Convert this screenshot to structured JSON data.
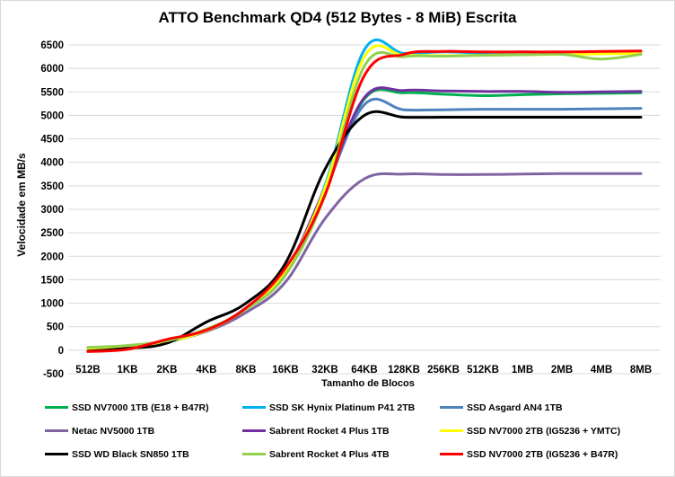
{
  "chart_data": {
    "type": "line",
    "title": "ATTO Benchmark QD4 (512 Bytes - 8 MiB) Escrita",
    "xlabel": "Tamanho de Blocos",
    "ylabel": "Velocidade em MB/s",
    "ylim": [
      -500,
      6500
    ],
    "yticks": [
      -500,
      0,
      500,
      1000,
      1500,
      2000,
      2500,
      3000,
      3500,
      4000,
      4500,
      5000,
      5500,
      6000,
      6500
    ],
    "ytick_labels": [
      "-500",
      "0",
      "500",
      "1000",
      "1500",
      "2000",
      "2500",
      "3000",
      "3500",
      "4000",
      "4500",
      "5000",
      "5500",
      "6000",
      "6500"
    ],
    "grid": true,
    "legend_position": "bottom",
    "categories": [
      "512B",
      "1KB",
      "2KB",
      "4KB",
      "8KB",
      "16KB",
      "32KB",
      "64KB",
      "128KB",
      "256KB",
      "512KB",
      "1MB",
      "2MB",
      "4MB",
      "8MB"
    ],
    "series": [
      {
        "name": "SSD NV7000 1TB (E18 + B47R)",
        "color": "#00b050",
        "values": [
          50,
          80,
          180,
          420,
          880,
          1650,
          3400,
          5350,
          5480,
          5450,
          5420,
          5440,
          5460,
          5470,
          5480
        ]
      },
      {
        "name": "SSD SK Hynix Platinum P41 2TB",
        "color": "#00b0f0",
        "values": [
          30,
          60,
          170,
          430,
          900,
          1700,
          3500,
          6400,
          6320,
          6350,
          6330,
          6350,
          6340,
          6350,
          6360
        ]
      },
      {
        "name": "SSD Asgard AN4 1TB",
        "color": "#4f81bd",
        "values": [
          40,
          70,
          190,
          440,
          880,
          1680,
          3400,
          5230,
          5120,
          5120,
          5130,
          5130,
          5130,
          5140,
          5150
        ]
      },
      {
        "name": "Netac NV5000 1TB",
        "color": "#8064a2",
        "values": [
          20,
          60,
          180,
          400,
          800,
          1450,
          2800,
          3650,
          3750,
          3740,
          3740,
          3750,
          3760,
          3760,
          3760
        ]
      },
      {
        "name": "Sabrent Rocket 4 Plus 1TB",
        "color": "#7030a0",
        "values": [
          30,
          70,
          190,
          430,
          880,
          1680,
          3450,
          5380,
          5530,
          5520,
          5510,
          5510,
          5490,
          5500,
          5510
        ]
      },
      {
        "name": "SSD NV7000 2TB (IG5236 + YMTC)",
        "color": "#ffff00",
        "values": [
          20,
          60,
          180,
          420,
          890,
          1700,
          3450,
          6250,
          6280,
          6270,
          6280,
          6290,
          6300,
          6310,
          6320
        ]
      },
      {
        "name": "SSD WD Black SN850 1TB",
        "color": "#000000",
        "values": [
          -20,
          40,
          150,
          600,
          1000,
          1850,
          3850,
          5000,
          4960,
          4960,
          4960,
          4960,
          4960,
          4960,
          4960
        ]
      },
      {
        "name": "Sabrent Rocket 4 Plus 4TB",
        "color": "#92d050",
        "values": [
          60,
          100,
          200,
          450,
          870,
          1600,
          3300,
          6050,
          6250,
          6260,
          6280,
          6290,
          6300,
          6200,
          6300
        ]
      },
      {
        "name": "SSD NV7000 2TB (IG5236 + B47R)",
        "color": "#ff0000",
        "values": [
          -30,
          20,
          230,
          430,
          900,
          1750,
          3300,
          5850,
          6300,
          6360,
          6350,
          6350,
          6350,
          6360,
          6370
        ]
      }
    ]
  }
}
